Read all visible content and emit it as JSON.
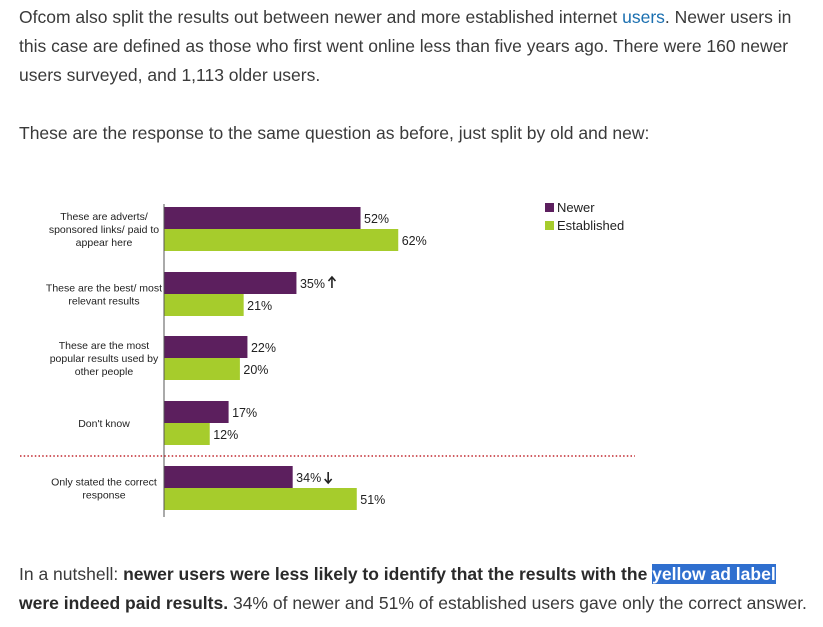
{
  "paragraphs": {
    "p1_before": "Ofcom also split the results out between newer and more established internet ",
    "p1_link": "users",
    "p1_after": ". Newer users in this case are defined as those who first went online less than five years ago. There were 160 newer users surveyed, and 1,113 older users.",
    "p2": "These are the response to the same question as before, just split by old and new:",
    "p3_lead": "In a nutshell: ",
    "p3_bold1": "newer users were less likely to identify that the results with the ",
    "p3_highlight": "yellow ad label",
    "p3_bold2": " were indeed paid results.",
    "p3_tail": " 34% of newer and 51% of established users gave only the correct answer."
  },
  "chart_data": {
    "type": "bar",
    "orientation": "horizontal",
    "categories": [
      [
        "These are adverts/",
        "sponsored links/ paid to",
        "appear here"
      ],
      [
        "These are the best/ most",
        "relevant results"
      ],
      [
        "These are the most",
        "popular results used by",
        "other people"
      ],
      [
        "Don't know"
      ],
      [
        "Only stated the correct",
        "response"
      ]
    ],
    "series": [
      {
        "name": "Newer",
        "color": "#5c1f5e",
        "values": [
          52,
          35,
          22,
          17,
          34
        ],
        "labels": [
          "52%",
          "35%",
          "22%",
          "17%",
          "34%"
        ]
      },
      {
        "name": "Established",
        "color": "#a6cc2c",
        "values": [
          62,
          21,
          20,
          12,
          51
        ],
        "labels": [
          "62%",
          "21%",
          "20%",
          "12%",
          "51%"
        ]
      }
    ],
    "markers": [
      null,
      "up",
      null,
      null,
      "down"
    ],
    "separator_before_category": 4,
    "legend_position": "top-right",
    "separator_color": "#c0262d"
  }
}
